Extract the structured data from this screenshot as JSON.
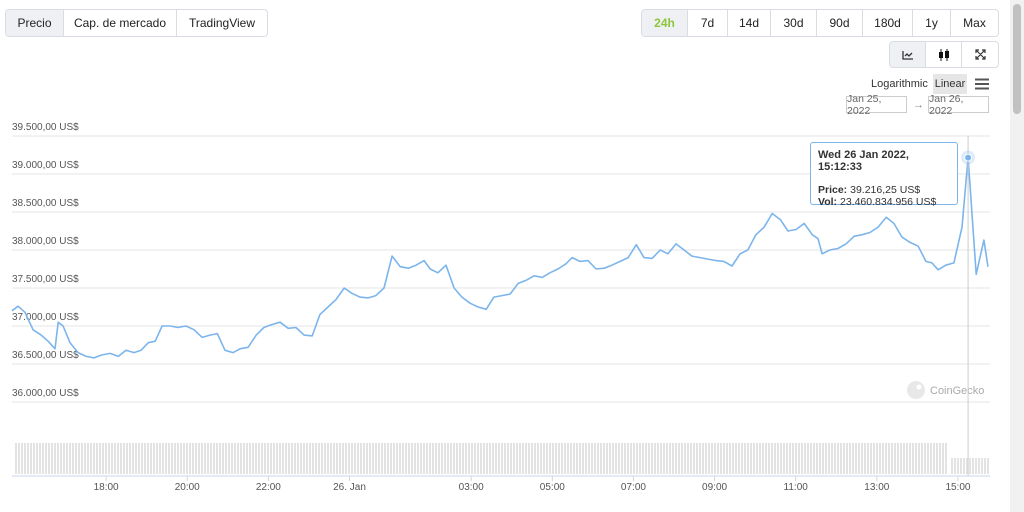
{
  "tabs": [
    "Precio",
    "Cap. de mercado",
    "TradingView"
  ],
  "ranges": [
    "24h",
    "7d",
    "14d",
    "30d",
    "90d",
    "180d",
    "1y",
    "Max"
  ],
  "scale_options": [
    "Logarithmic",
    "Linear"
  ],
  "date_from": "Jan 25, 2022",
  "date_separator": "→",
  "date_to": "Jan 26, 2022",
  "watermark": "CoinGecko",
  "chart_data": {
    "type": "line",
    "color": "#7cb5ec",
    "grid": true,
    "x": [
      15.68,
      15.83,
      16.0,
      16.2,
      16.4,
      16.57,
      16.74,
      16.82,
      16.94,
      17.11,
      17.31,
      17.51,
      17.7,
      17.9,
      18.1,
      18.3,
      18.49,
      18.69,
      18.86,
      19.04,
      19.21,
      19.38,
      19.58,
      19.77,
      19.97,
      20.17,
      20.37,
      20.56,
      20.74,
      20.93,
      21.13,
      21.3,
      21.5,
      21.7,
      21.89,
      22.09,
      22.29,
      22.49,
      22.68,
      22.88,
      23.08,
      23.27,
      23.47,
      23.67,
      23.87,
      24.06,
      24.26,
      24.46,
      24.65,
      24.85,
      25.05,
      25.25,
      25.45,
      25.64,
      25.84,
      25.99,
      26.18,
      26.38,
      26.58,
      26.77,
      26.97,
      27.17,
      27.37,
      27.56,
      27.76,
      27.96,
      28.16,
      28.35,
      28.55,
      28.75,
      28.94,
      29.14,
      29.34,
      29.49,
      29.68,
      29.88,
      30.08,
      30.28,
      30.47,
      30.67,
      30.87,
      31.07,
      31.26,
      31.46,
      31.66,
      31.85,
      32.05,
      32.25,
      32.44,
      32.64,
      32.84,
      33.04,
      33.23,
      33.43,
      33.63,
      33.82,
      34.02,
      34.22,
      34.42,
      34.62,
      34.81,
      35.01,
      35.21,
      35.41,
      35.55,
      35.65,
      35.84,
      36.04,
      36.24,
      36.44,
      36.63,
      36.83,
      37.03,
      37.23,
      37.42,
      37.62,
      37.82,
      38.02,
      38.21,
      38.36,
      38.51,
      38.7,
      38.9,
      39.1,
      39.25,
      39.45,
      39.64,
      39.74
    ],
    "values": [
      37200,
      37260,
      37180,
      36950,
      36880,
      36800,
      36700,
      37050,
      37000,
      36780,
      36650,
      36600,
      36580,
      36620,
      36640,
      36600,
      36680,
      36650,
      36680,
      36780,
      36800,
      37000,
      37000,
      36980,
      37000,
      36950,
      36850,
      36880,
      36900,
      36680,
      36650,
      36700,
      36720,
      36880,
      36980,
      37020,
      37050,
      36970,
      36980,
      36880,
      36870,
      37150,
      37250,
      37350,
      37500,
      37430,
      37380,
      37370,
      37400,
      37500,
      37920,
      37780,
      37760,
      37800,
      37860,
      37750,
      37700,
      37800,
      37500,
      37380,
      37300,
      37250,
      37220,
      37380,
      37400,
      37420,
      37560,
      37600,
      37660,
      37640,
      37700,
      37750,
      37820,
      37900,
      37850,
      37860,
      37750,
      37760,
      37800,
      37850,
      37900,
      38070,
      37900,
      37890,
      38000,
      37950,
      38080,
      38000,
      37920,
      37900,
      37880,
      37860,
      37850,
      37790,
      37950,
      38000,
      38200,
      38300,
      38480,
      38400,
      38250,
      38270,
      38350,
      38200,
      38150,
      37950,
      38000,
      38020,
      38080,
      38180,
      38200,
      38230,
      38300,
      38430,
      38350,
      38170,
      38100,
      38050,
      37850,
      37830,
      37740,
      37800,
      37830,
      38300,
      39216,
      37680,
      38130,
      37780
    ],
    "xlim": [
      15.68,
      39.79
    ],
    "xticks": [
      {
        "value": 18,
        "label": "18:00"
      },
      {
        "value": 20,
        "label": "20:00"
      },
      {
        "value": 22,
        "label": "22:00"
      },
      {
        "value": 24,
        "label": "26. Jan"
      },
      {
        "value": 27,
        "label": "03:00"
      },
      {
        "value": 29,
        "label": "05:00"
      },
      {
        "value": 31,
        "label": "07:00"
      },
      {
        "value": 33,
        "label": "09:00"
      },
      {
        "value": 35,
        "label": "11:00"
      },
      {
        "value": 37,
        "label": "13:00"
      },
      {
        "value": 39,
        "label": "15:00"
      }
    ],
    "ylim": [
      35500,
      39500
    ],
    "yticks": [
      {
        "value": 36000,
        "label": "36.000,00 US$"
      },
      {
        "value": 36500,
        "label": "36.500,00 US$"
      },
      {
        "value": 37000,
        "label": "37.000,00 US$"
      },
      {
        "value": 37500,
        "label": "37.500,00 US$"
      },
      {
        "value": 38000,
        "label": "38.000,00 US$"
      },
      {
        "value": 38500,
        "label": "38.500,00 US$"
      },
      {
        "value": 39000,
        "label": "39.000,00 US$"
      },
      {
        "value": 39500,
        "label": "39.500,00 US$"
      }
    ],
    "tooltip": {
      "title": "Wed 26 Jan 2022, 15:12:33",
      "rows": [
        {
          "label": "Price:",
          "value": "39.216,25 US$"
        },
        {
          "label": "Vol:",
          "value": "23.460.834.956 US$"
        }
      ]
    }
  }
}
